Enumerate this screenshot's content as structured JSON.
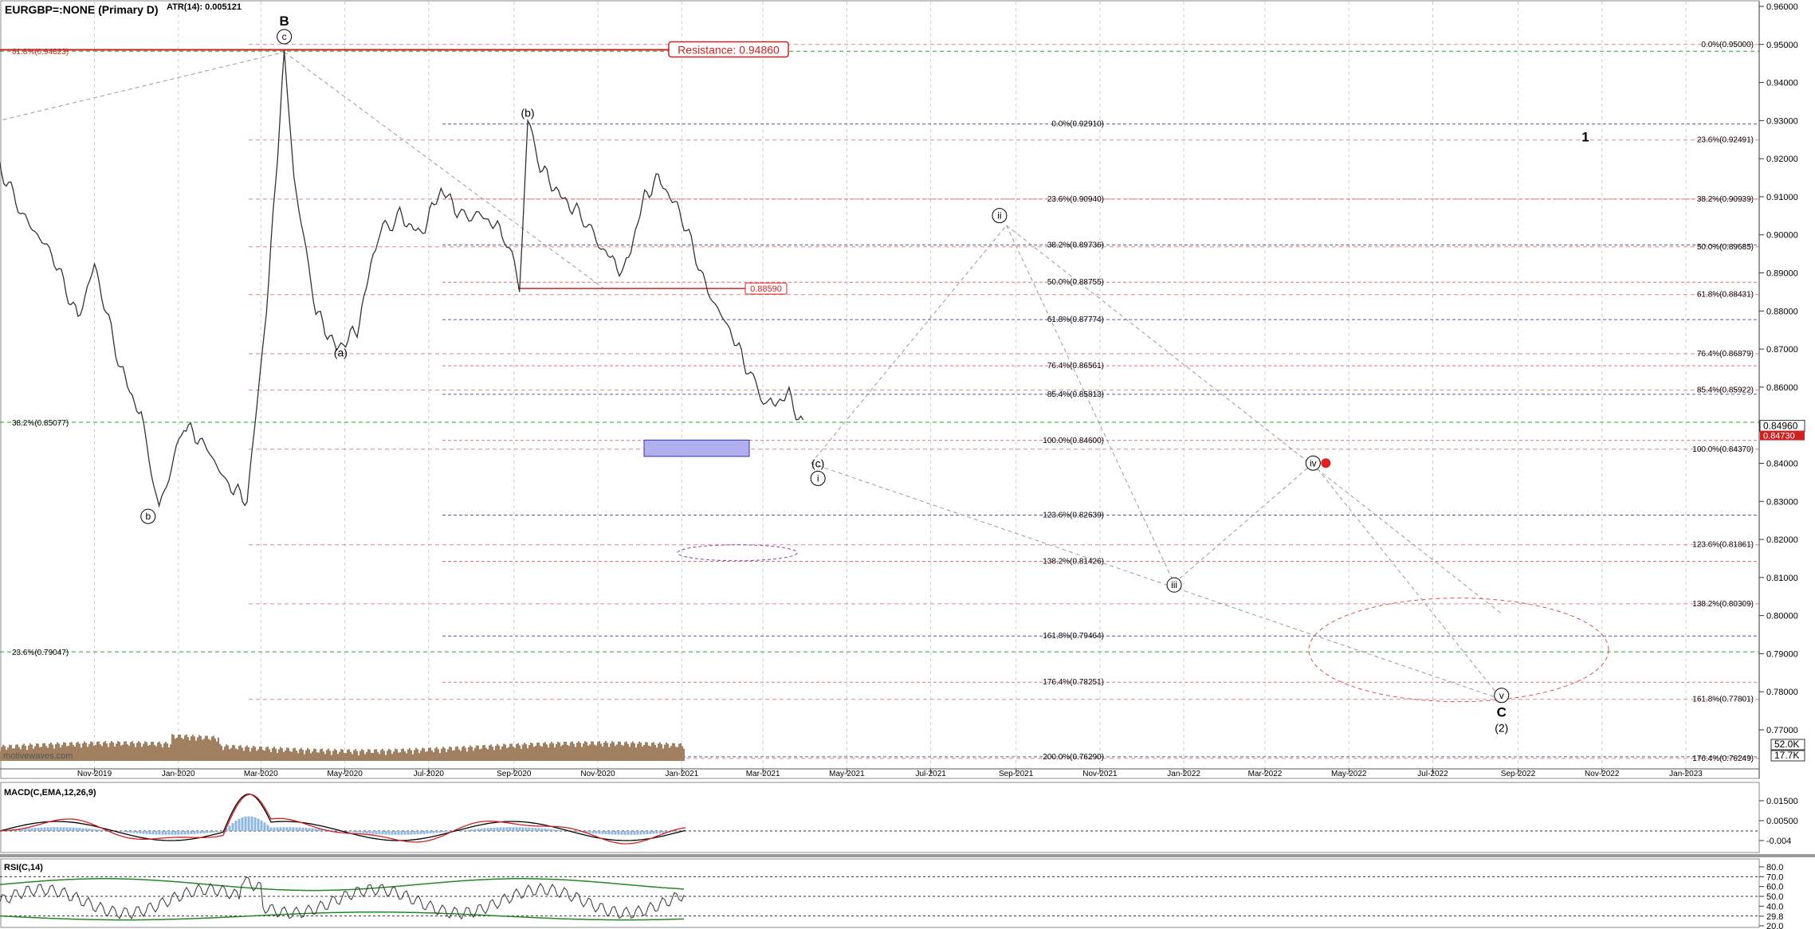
{
  "header": {
    "title": "EURGBP=:NONE (Primary D)",
    "atr": "ATR(14): 0.005121"
  },
  "resistance_label": "Resistance: 0.94860",
  "red_level_label": "0.88590",
  "watermark": "motivewaves.com",
  "chart_data": {
    "type": "line",
    "title": "EURGBP=:NONE (Primary D)",
    "series": [
      {
        "x": [
          "2019-08-15",
          "2019-09-10",
          "2019-10-01",
          "2019-10-20",
          "2019-11-01",
          "2019-11-20",
          "2019-12-05",
          "2019-12-18",
          "2020-01-05",
          "2020-01-20",
          "2020-02-05",
          "2020-02-20",
          "2020-03-05",
          "2020-03-10",
          "2020-03-18",
          "2020-03-25",
          "2020-04-10",
          "2020-04-25",
          "2020-05-10",
          "2020-05-25",
          "2020-06-10",
          "2020-06-25",
          "2020-07-10",
          "2020-07-25",
          "2020-08-10",
          "2020-08-25",
          "2020-09-05",
          "2020-09-11",
          "2020-09-20",
          "2020-10-05",
          "2020-10-20",
          "2020-11-05",
          "2020-11-20",
          "2020-12-05",
          "2020-12-15",
          "2021-01-01",
          "2021-01-20",
          "2021-02-05",
          "2021-02-20",
          "2021-03-05",
          "2021-03-20",
          "2021-04-01"
        ],
        "values": [
          0.925,
          0.905,
          0.895,
          0.878,
          0.892,
          0.865,
          0.852,
          0.828,
          0.85,
          0.845,
          0.835,
          0.83,
          0.88,
          0.905,
          0.948,
          0.915,
          0.88,
          0.87,
          0.875,
          0.9,
          0.905,
          0.9,
          0.912,
          0.905,
          0.905,
          0.9,
          0.887,
          0.93,
          0.918,
          0.91,
          0.905,
          0.896,
          0.89,
          0.91,
          0.915,
          0.905,
          0.885,
          0.875,
          0.863,
          0.855,
          0.858,
          0.848
        ]
      }
    ],
    "indicators": [
      "MACD(C,EMA,12,26,9)",
      "RSI(C,14)"
    ],
    "x_ticks": [
      "Nov-2019",
      "Jan-2020",
      "Mar-2020",
      "May-2020",
      "Jul-2020",
      "Sep-2020",
      "Nov-2020",
      "Jan-2021",
      "Mar-2021",
      "May-2021",
      "Jul-2021",
      "Sep-2021",
      "Nov-2021",
      "Jan-2022",
      "Mar-2022",
      "May-2022",
      "Jul-2022",
      "Sep-2022",
      "Nov-2022",
      "Jan-2023"
    ],
    "y_ticks": [
      "0.96000",
      "0.95000",
      "0.94000",
      "0.93000",
      "0.92000",
      "0.91000",
      "0.90000",
      "0.89000",
      "0.88000",
      "0.87000",
      "0.86000",
      "0.85000",
      "0.84000",
      "0.83000",
      "0.82000",
      "0.81000",
      "0.80000",
      "0.79000",
      "0.78000",
      "0.77000"
    ],
    "ylim": [
      0.76,
      0.96
    ],
    "last_price": "0.84960",
    "last_price_2": "0.84730",
    "volume_labels": [
      "52.0K",
      "17.7K"
    ],
    "macd_ticks": [
      "0.01500",
      "0.00500",
      "-0.004"
    ],
    "rsi_ticks": [
      "80.0",
      "70.0",
      "60.0",
      "50.0",
      "40.0",
      "29.8",
      "20.0"
    ],
    "fib_center": [
      {
        "label": "0.0%(0.92910)",
        "y": 0.9291
      },
      {
        "label": "23.6%(0.90940)",
        "y": 0.9094
      },
      {
        "label": "38.2%(0.89736)",
        "y": 0.89736
      },
      {
        "label": "50.0%(0.88755)",
        "y": 0.88755
      },
      {
        "label": "61.8%(0.87774)",
        "y": 0.87774
      },
      {
        "label": "76.4%(0.86561)",
        "y": 0.86561
      },
      {
        "label": "85.4%(0.85813)",
        "y": 0.85813
      },
      {
        "label": "100.0%(0.84600)",
        "y": 0.846
      },
      {
        "label": "123.6%(0.82639)",
        "y": 0.82639
      },
      {
        "label": "138.2%(0.81426)",
        "y": 0.81426
      },
      {
        "label": "161.8%(0.79464)",
        "y": 0.79464
      },
      {
        "label": "176.4%(0.78251)",
        "y": 0.78251
      },
      {
        "label": "200.0%(0.76290)",
        "y": 0.7629
      }
    ],
    "fib_right": [
      {
        "label": "0.0%(0.95000)",
        "y": 0.95
      },
      {
        "label": "23.6%(0.92491)",
        "y": 0.92491
      },
      {
        "label": "38.2%(0.90939)",
        "y": 0.90939
      },
      {
        "label": "50.0%(0.89685)",
        "y": 0.89685
      },
      {
        "label": "61.8%(0.88431)",
        "y": 0.88431
      },
      {
        "label": "76.4%(0.86879)",
        "y": 0.86879
      },
      {
        "label": "85.4%(0.85922)",
        "y": 0.85922
      },
      {
        "label": "100.0%(0.84370)",
        "y": 0.8437
      },
      {
        "label": "123.6%(0.81861)",
        "y": 0.81861
      },
      {
        "label": "138.2%(0.80309)",
        "y": 0.80309
      },
      {
        "label": "161.8%(0.77801)",
        "y": 0.77801
      },
      {
        "label": "176.4%(0.76249)",
        "y": 0.76249
      }
    ],
    "fib_left": [
      {
        "label": "61.8%(0.94823)",
        "y": 0.94823
      },
      {
        "label": "38.2%(0.85077)",
        "y": 0.85077
      },
      {
        "label": "23.6%(0.79047)",
        "y": 0.79047
      }
    ],
    "wave_labels": [
      {
        "text": "B",
        "x": "2020-03-18",
        "y": 0.955
      },
      {
        "text": "c",
        "x": "2020-03-18",
        "y": 0.951
      },
      {
        "text": "(b)",
        "x": "2020-09-11",
        "y": 0.931
      },
      {
        "text": "(a)",
        "x": "2020-04-28",
        "y": 0.868
      },
      {
        "text": "b",
        "x": "2019-12-10",
        "y": 0.825
      },
      {
        "text": "(c)",
        "x": "2021-04-10",
        "y": 0.839
      },
      {
        "text": "i",
        "x": "2021-04-10",
        "y": 0.835
      },
      {
        "text": "ii",
        "x": "2021-08-20",
        "y": 0.904
      },
      {
        "text": "iii",
        "x": "2021-12-25",
        "y": 0.807
      },
      {
        "text": "iv",
        "x": "2022-04-05",
        "y": 0.839
      },
      {
        "text": "v",
        "x": "2022-08-20",
        "y": 0.778
      },
      {
        "text": "C",
        "x": "2022-08-20",
        "y": 0.7735
      },
      {
        "text": "(2)",
        "x": "2022-08-20",
        "y": 0.7695
      },
      {
        "text": "1",
        "x": "2022-10-20",
        "y": 0.9245
      }
    ]
  },
  "colors": {
    "price": "#333333",
    "fib_blue": "#5a5a9a",
    "fib_red": "#e07070",
    "fib_green": "#22aa22",
    "resistance": "#cc2222",
    "volume": "#a08060"
  }
}
